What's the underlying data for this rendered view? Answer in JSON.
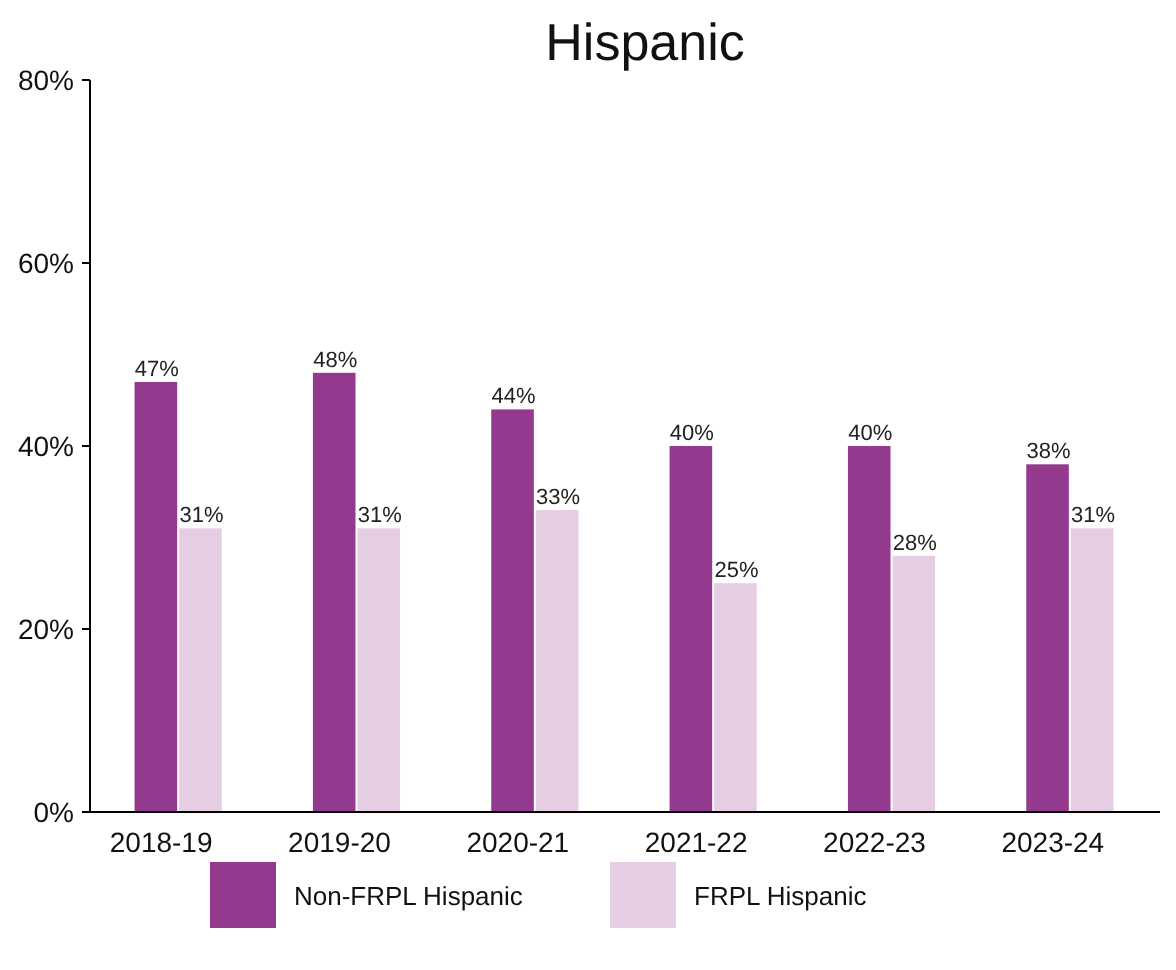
{
  "chart_data": {
    "type": "bar",
    "title": "Hispanic",
    "categories": [
      "2018-19",
      "2019-20",
      "2020-21",
      "2021-22",
      "2022-23",
      "2023-24"
    ],
    "series": [
      {
        "name": "Non-FRPL Hispanic",
        "color": "#933a8f",
        "values": [
          47,
          48,
          44,
          40,
          40,
          38
        ],
        "value_labels": [
          "47%",
          "48%",
          "44%",
          "40%",
          "40%",
          "38%"
        ]
      },
      {
        "name": "FRPL Hispanic",
        "color": "#e5cde3",
        "values": [
          31,
          31,
          33,
          25,
          28,
          31
        ],
        "value_labels": [
          "31%",
          "31%",
          "33%",
          "25%",
          "28%",
          "31%"
        ]
      }
    ],
    "ylim": [
      0,
      80
    ],
    "yticks": [
      {
        "value": 0,
        "label": "0%"
      },
      {
        "value": 20,
        "label": "20%"
      },
      {
        "value": 40,
        "label": "40%"
      },
      {
        "value": 60,
        "label": "60%"
      },
      {
        "value": 80,
        "label": "80%"
      }
    ],
    "legend": "bottom",
    "grid": false
  }
}
